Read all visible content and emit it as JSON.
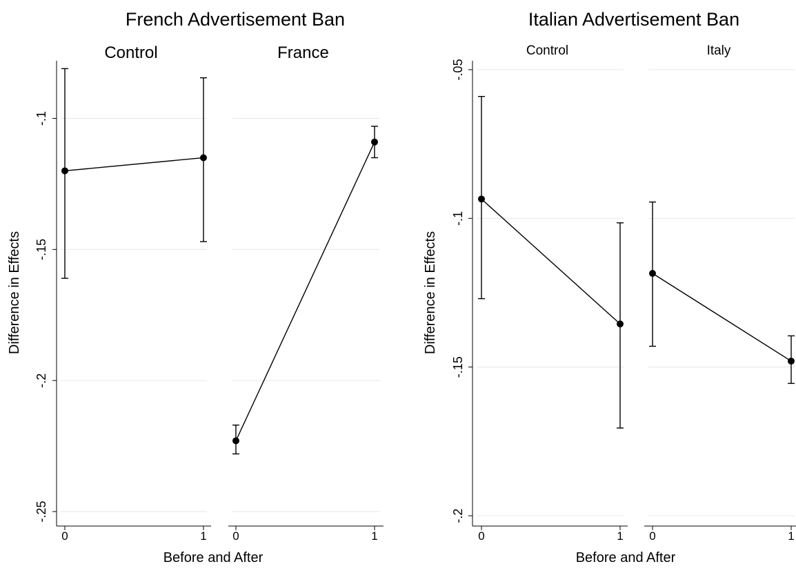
{
  "chart_data": [
    {
      "type": "line",
      "title": "French Advertisement Ban",
      "xlabel": "Before and After",
      "ylabel": "Difference in Effects",
      "ylim": [
        -0.255,
        -0.078
      ],
      "yticks": [
        "-.1",
        "-.15",
        "-.2",
        "-.25"
      ],
      "ytick_values": [
        -0.1,
        -0.15,
        -0.2,
        -0.25
      ],
      "xticks": [
        "0",
        "1"
      ],
      "grid": true,
      "panels": [
        {
          "label": "Control",
          "x": [
            0,
            1
          ],
          "y": [
            -0.12,
            -0.115
          ],
          "ci_low": [
            -0.161,
            -0.147
          ],
          "ci_high": [
            -0.081,
            -0.0845
          ]
        },
        {
          "label": "France",
          "x": [
            0,
            1
          ],
          "y": [
            -0.223,
            -0.109
          ],
          "ci_low": [
            -0.228,
            -0.115
          ],
          "ci_high": [
            -0.217,
            -0.103
          ]
        }
      ]
    },
    {
      "type": "line",
      "title": "Italian Advertisement Ban",
      "xlabel": "Before and After",
      "ylabel": "Difference in Effects",
      "ylim": [
        -0.203,
        -0.047
      ],
      "yticks": [
        "-.05",
        "-.1",
        "-.15",
        "-.2"
      ],
      "ytick_values": [
        -0.05,
        -0.1,
        -0.15,
        -0.2
      ],
      "xticks": [
        "0",
        "1"
      ],
      "grid": true,
      "panels": [
        {
          "label": "Control",
          "x": [
            0,
            1
          ],
          "y": [
            -0.0935,
            -0.1355
          ],
          "ci_low": [
            -0.127,
            -0.1705
          ],
          "ci_high": [
            -0.059,
            -0.1015
          ]
        },
        {
          "label": "Italy",
          "x": [
            0,
            1
          ],
          "y": [
            -0.1185,
            -0.148
          ],
          "ci_low": [
            -0.143,
            -0.1555
          ],
          "ci_high": [
            -0.0945,
            -0.1395
          ]
        }
      ]
    }
  ]
}
